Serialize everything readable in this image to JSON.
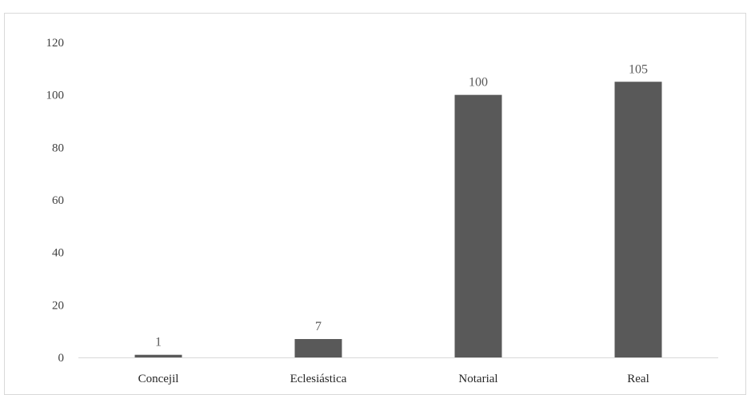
{
  "chart_data": {
    "type": "bar",
    "categories": [
      "Concejil",
      "Eclesiástica",
      "Notarial",
      "Real"
    ],
    "values": [
      1,
      7,
      100,
      105
    ],
    "data_labels": [
      "1",
      "7",
      "100",
      "105"
    ],
    "title": "",
    "xlabel": "",
    "ylabel": "",
    "ylim": [
      0,
      120
    ],
    "yticks": [
      "0",
      "20",
      "40",
      "60",
      "80",
      "100",
      "120"
    ],
    "grid": false,
    "legend": "none",
    "bar_color": "#595959",
    "axis_color": "#d9d9d9"
  }
}
